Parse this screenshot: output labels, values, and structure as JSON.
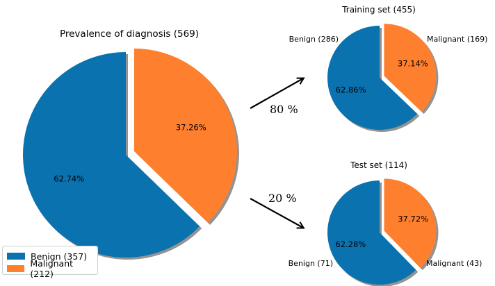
{
  "chart_data": [
    {
      "type": "pie",
      "title": "Prevalence of diagnosis (569)",
      "slices": [
        {
          "label": "Benign (357)",
          "value": 357,
          "pct": "62.74%",
          "color": "#0b72b0"
        },
        {
          "label": "Malignant (212)",
          "value": 212,
          "pct": "37.26%",
          "color": "#fe7f2d"
        }
      ],
      "legend": "lower-left",
      "shadow": true,
      "exploded": "Malignant"
    },
    {
      "type": "pie",
      "title": "Training set (455)",
      "slices": [
        {
          "label": "Benign (286)",
          "value": 286,
          "pct": "62.86%",
          "color": "#0b72b0"
        },
        {
          "label": "Malignant (169)",
          "value": 169,
          "pct": "37.14%",
          "color": "#fe7f2d"
        }
      ],
      "shadow": true,
      "exploded": "Malignant"
    },
    {
      "type": "pie",
      "title": "Test set (114)",
      "slices": [
        {
          "label": "Benign (71)",
          "value": 71,
          "pct": "62.28%",
          "color": "#0b72b0"
        },
        {
          "label": "Malignant (43)",
          "value": 43,
          "pct": "37.72%",
          "color": "#fe7f2d"
        }
      ],
      "shadow": true,
      "exploded": "Malignant"
    }
  ],
  "arrows": {
    "train_label": "80 %",
    "test_label": "20 %"
  },
  "legend": {
    "items": [
      {
        "label": "Benign (357)",
        "color": "#0b72b0"
      },
      {
        "label": "Malignant (212)",
        "color": "#fe7f2d"
      }
    ]
  }
}
